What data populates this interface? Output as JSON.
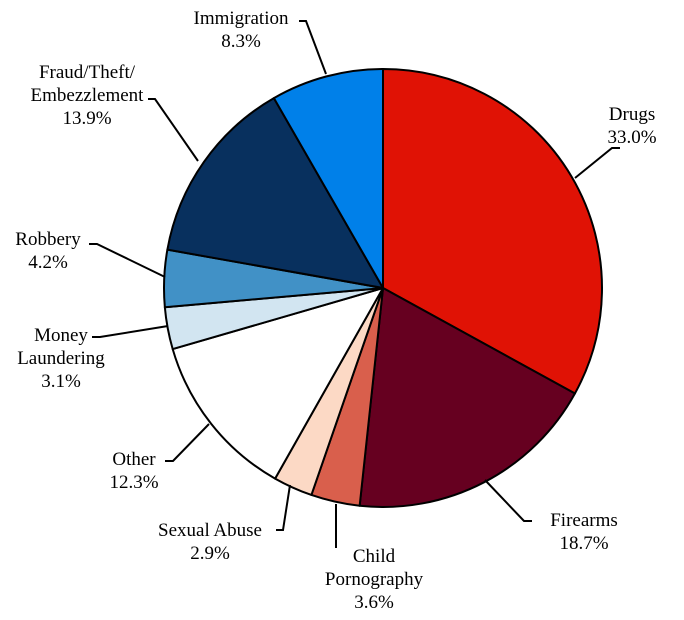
{
  "chart_data": {
    "type": "pie",
    "title": "",
    "slices": [
      {
        "label": [
          "Drugs"
        ],
        "value": 33.0,
        "value_label": "33.0%",
        "color": "#E01205"
      },
      {
        "label": [
          "Firearms"
        ],
        "value": 18.7,
        "value_label": "18.7%",
        "color": "#660020"
      },
      {
        "label": [
          "Child",
          "Pornography"
        ],
        "value": 3.6,
        "value_label": "3.6%",
        "color": "#D95F4C"
      },
      {
        "label": [
          "Sexual Abuse"
        ],
        "value": 2.9,
        "value_label": "2.9%",
        "color": "#FCD9C5"
      },
      {
        "label": [
          "Other"
        ],
        "value": 12.3,
        "value_label": "12.3%",
        "color": "#FFFFFF"
      },
      {
        "label": [
          "Money",
          "Laundering"
        ],
        "value": 3.1,
        "value_label": "3.1%",
        "color": "#D2E5F1"
      },
      {
        "label": [
          "Robbery"
        ],
        "value": 4.2,
        "value_label": "4.2%",
        "color": "#4191C6"
      },
      {
        "label": [
          "Fraud/Theft/",
          "Embezzlement"
        ],
        "value": 13.9,
        "value_label": "13.9%",
        "color": "#08305E"
      },
      {
        "label": [
          "Immigration"
        ],
        "value": 8.3,
        "value_label": "8.3%",
        "color": "#0080E9"
      }
    ]
  }
}
